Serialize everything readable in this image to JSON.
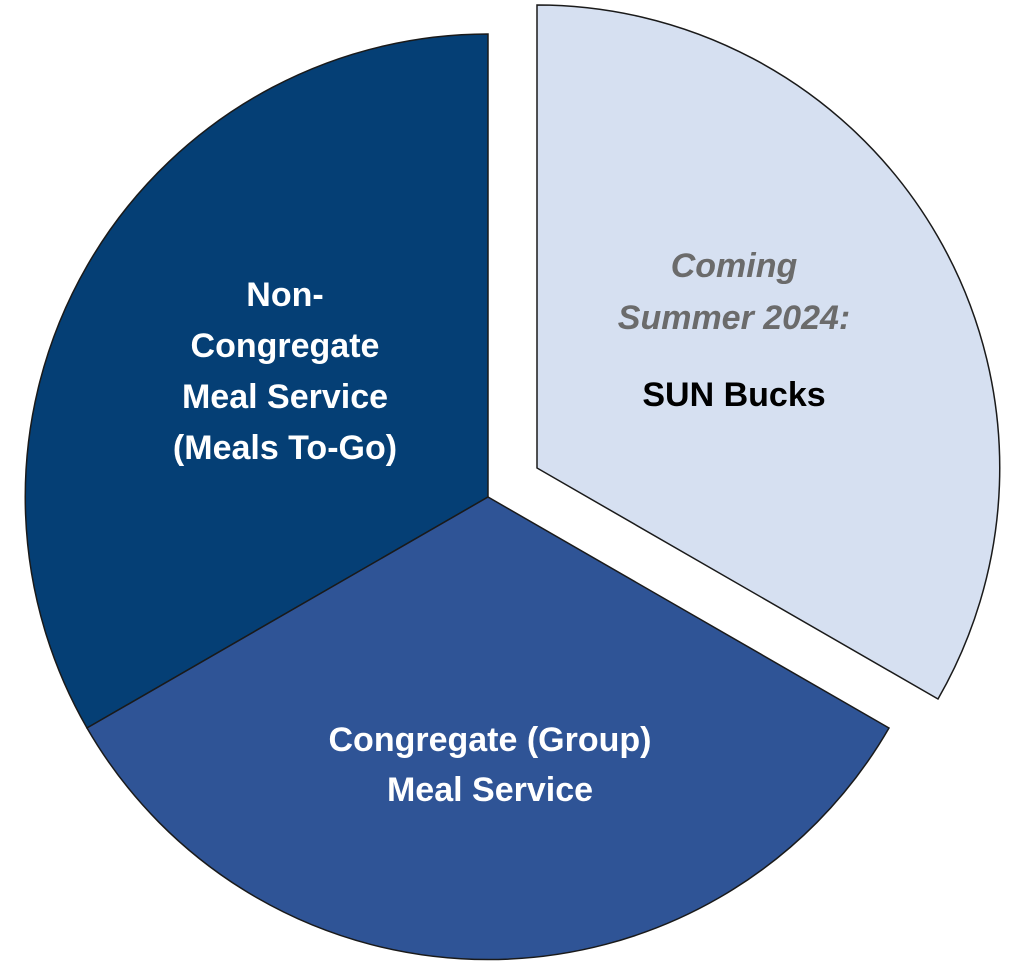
{
  "segments": [
    {
      "lines": [
        "Non-",
        "Congregate",
        "Meal Service",
        "(Meals To-Go)"
      ]
    },
    {
      "lines": [
        "Congregate (Group)",
        "Meal Service"
      ]
    },
    {
      "note": [
        "Coming",
        "Summer 2024:"
      ],
      "lines": [
        "SUN Bucks"
      ]
    }
  ]
}
